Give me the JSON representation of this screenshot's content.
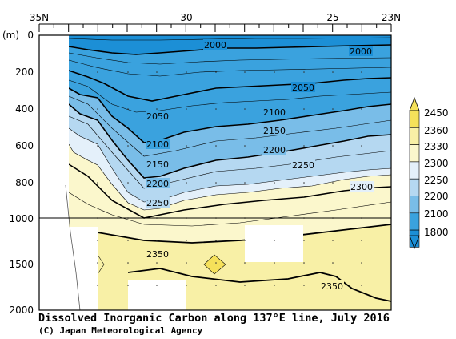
{
  "chart_data": {
    "type": "contour",
    "title": "Dissolved Inorganic Carbon along 137°E line, July 2016",
    "credit": "(C) Japan Meteorological Agency",
    "x_axis": {
      "ticks": [
        "35N",
        "30",
        "25",
        "23N"
      ],
      "range": [
        35,
        23
      ]
    },
    "y_axis": {
      "unit": "(m)",
      "ticks": [
        "0",
        "200",
        "400",
        "600",
        "800",
        "1000",
        "1500",
        "2000"
      ],
      "range": [
        0,
        2000
      ],
      "scale_break_depth": 1000
    },
    "colorbar": {
      "levels": [
        "2450",
        "2360",
        "2330",
        "2300",
        "2250",
        "2200",
        "2100",
        "1800"
      ],
      "colors": [
        "#f5e15a",
        "#f8f0a6",
        "#fbf7cc",
        "#e4f0fa",
        "#b5d8f1",
        "#79bde8",
        "#3aa2de",
        "#1c8fd6"
      ]
    },
    "contour_labels": [
      "2000",
      "2000",
      "2050",
      "2050",
      "2100",
      "2100",
      "2150",
      "2150",
      "2200",
      "2200",
      "2250",
      "2250",
      "2300",
      "2350",
      "2350"
    ]
  }
}
